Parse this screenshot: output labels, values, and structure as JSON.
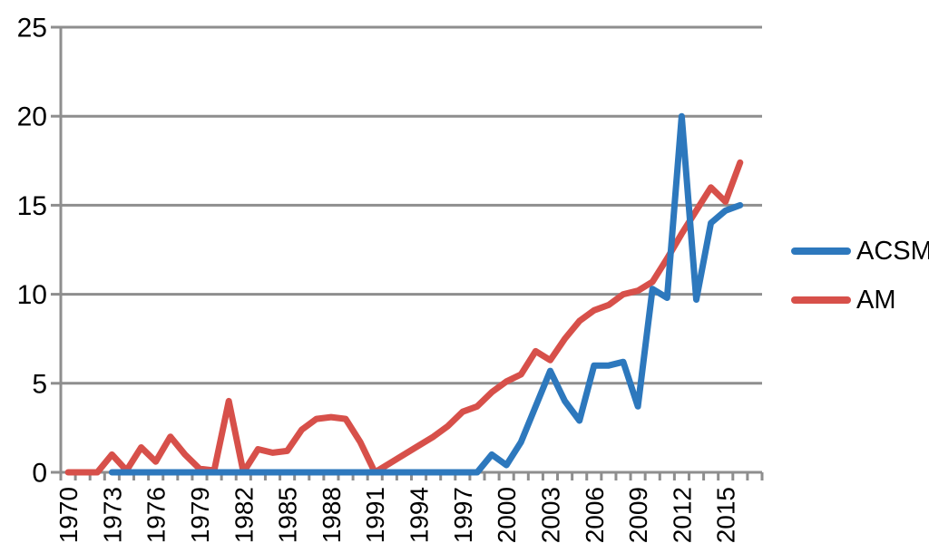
{
  "chart_data": {
    "type": "line",
    "title": "",
    "xlabel": "",
    "ylabel": "",
    "x": [
      1970,
      1971,
      1972,
      1973,
      1974,
      1975,
      1976,
      1977,
      1978,
      1979,
      1980,
      1981,
      1982,
      1983,
      1984,
      1985,
      1986,
      1987,
      1988,
      1989,
      1990,
      1991,
      1992,
      1993,
      1994,
      1995,
      1996,
      1997,
      1998,
      1999,
      2000,
      2001,
      2002,
      2003,
      2004,
      2005,
      2006,
      2007,
      2008,
      2009,
      2010,
      2011,
      2012,
      2013,
      2014,
      2015,
      2016
    ],
    "series": [
      {
        "name": "ACSM",
        "color": "#2d78bd",
        "values": [
          null,
          null,
          null,
          0,
          0,
          0,
          0,
          0,
          0,
          0,
          0,
          0,
          0,
          0,
          0,
          0,
          0,
          0,
          0,
          0,
          0,
          0,
          0,
          0,
          0,
          0,
          0,
          0,
          0,
          1,
          0.4,
          1.7,
          3.7,
          5.7,
          4,
          2.9,
          6,
          6,
          6.2,
          3.7,
          10.3,
          9.8,
          20,
          9.7,
          14,
          14.7,
          15
        ]
      },
      {
        "name": "AM",
        "color": "#d7504a",
        "values": [
          0,
          0,
          0,
          1,
          0.1,
          1.4,
          0.6,
          2,
          1,
          0.2,
          0.1,
          4,
          0,
          1.3,
          1.1,
          1.2,
          2.4,
          3,
          3.1,
          3,
          1.7,
          0,
          0.5,
          1,
          1.5,
          2,
          2.6,
          3.4,
          3.7,
          4.5,
          5.1,
          5.5,
          6.8,
          6.3,
          7.5,
          8.5,
          9.1,
          9.4,
          10,
          10.2,
          10.7,
          12,
          13.4,
          14.7,
          16,
          15.2,
          17.4
        ]
      }
    ],
    "draw_order": [
      1,
      0
    ],
    "ylim": [
      0,
      25
    ],
    "yticks": [
      0,
      5,
      10,
      15,
      20,
      25
    ],
    "ytick_labels": [
      "0",
      "5",
      "10",
      "15",
      "20",
      "25"
    ],
    "xtick_labels": [
      "1970",
      "1973",
      "1976",
      "1979",
      "1982",
      "1985",
      "1988",
      "1991",
      "1994",
      "1997",
      "2000",
      "2003",
      "2006",
      "2009",
      "2012",
      "2015"
    ],
    "xtick_label_interval": 3,
    "xtick_label_rotation": -90,
    "grid": true,
    "legend_position": "right",
    "style": {
      "axis_color": "#8e8e8e",
      "gridline_color": "#8e8e8e",
      "tick_label_color": "#000000",
      "line_width": 7,
      "background": "#ffffff"
    }
  }
}
